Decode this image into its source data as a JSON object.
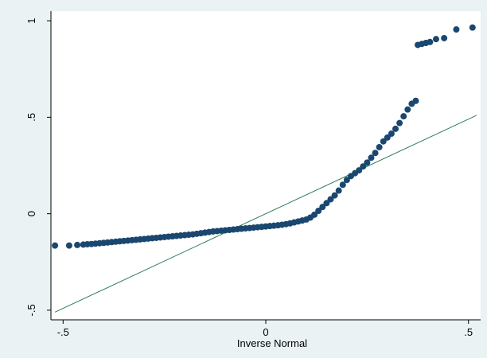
{
  "chart_data": {
    "type": "scatter",
    "title": "",
    "xlabel": "Inverse Normal",
    "ylabel": "",
    "xlim": [
      -0.53,
      0.53
    ],
    "ylim": [
      -0.55,
      1.05
    ],
    "xticks": [
      -0.5,
      0,
      0.5
    ],
    "xtick_labels": [
      "-.5",
      "0",
      ".5"
    ],
    "yticks": [
      -0.5,
      0,
      0.5,
      1
    ],
    "ytick_labels": [
      "-.5",
      "0",
      ".5",
      "1"
    ],
    "grid": false,
    "legend": "none",
    "colors": {
      "background": "#eaf2f3",
      "plot_area": "#ffffff",
      "points": "#1a476f",
      "reference_line": "#2e7d5b"
    },
    "reference_line": {
      "x": [
        -0.52,
        0.52
      ],
      "y": [
        -0.51,
        0.51
      ]
    },
    "series": [
      {
        "x": [
          -0.52,
          -0.485,
          -0.465,
          -0.45,
          -0.44,
          -0.43,
          -0.42,
          -0.41,
          -0.4,
          -0.39,
          -0.38,
          -0.37,
          -0.36,
          -0.35,
          -0.34,
          -0.33,
          -0.32,
          -0.31,
          -0.3,
          -0.29,
          -0.28,
          -0.27,
          -0.26,
          -0.25,
          -0.24,
          -0.23,
          -0.22,
          -0.21,
          -0.2,
          -0.19,
          -0.18,
          -0.17,
          -0.16,
          -0.15,
          -0.14,
          -0.13,
          -0.12,
          -0.11,
          -0.1,
          -0.09,
          -0.08,
          -0.07,
          -0.06,
          -0.05,
          -0.04,
          -0.03,
          -0.02,
          -0.01,
          0.0,
          0.01,
          0.02,
          0.03,
          0.04,
          0.05,
          0.06,
          0.07,
          0.08,
          0.09,
          0.1,
          0.11,
          0.12,
          0.13,
          0.14,
          0.15,
          0.16,
          0.17,
          0.18,
          0.19,
          0.2,
          0.21,
          0.22,
          0.23,
          0.24,
          0.25,
          0.26,
          0.27,
          0.28,
          0.29,
          0.3,
          0.31,
          0.32,
          0.33,
          0.34,
          0.35,
          0.36,
          0.37,
          0.375,
          0.385,
          0.395,
          0.405,
          0.42,
          0.44,
          0.47,
          0.51
        ],
        "y": [
          -0.165,
          -0.165,
          -0.162,
          -0.16,
          -0.158,
          -0.157,
          -0.155,
          -0.153,
          -0.151,
          -0.149,
          -0.147,
          -0.145,
          -0.143,
          -0.141,
          -0.139,
          -0.137,
          -0.135,
          -0.133,
          -0.131,
          -0.129,
          -0.127,
          -0.125,
          -0.123,
          -0.121,
          -0.119,
          -0.117,
          -0.115,
          -0.113,
          -0.111,
          -0.109,
          -0.107,
          -0.104,
          -0.101,
          -0.098,
          -0.095,
          -0.092,
          -0.09,
          -0.088,
          -0.086,
          -0.084,
          -0.082,
          -0.08,
          -0.078,
          -0.076,
          -0.074,
          -0.072,
          -0.07,
          -0.068,
          -0.066,
          -0.064,
          -0.062,
          -0.06,
          -0.057,
          -0.054,
          -0.05,
          -0.045,
          -0.04,
          -0.035,
          -0.03,
          -0.02,
          -0.005,
          0.015,
          0.035,
          0.055,
          0.075,
          0.095,
          0.12,
          0.15,
          0.175,
          0.195,
          0.21,
          0.225,
          0.245,
          0.265,
          0.29,
          0.315,
          0.345,
          0.375,
          0.395,
          0.415,
          0.44,
          0.47,
          0.505,
          0.54,
          0.57,
          0.585,
          0.875,
          0.88,
          0.885,
          0.89,
          0.905,
          0.91,
          0.955,
          0.965
        ]
      }
    ]
  }
}
